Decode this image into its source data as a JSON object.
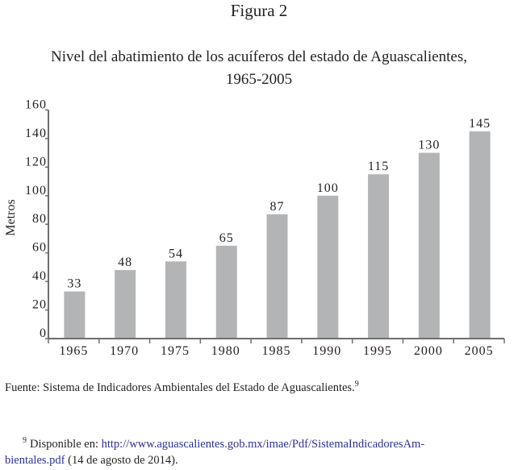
{
  "figure_label": "Figura 2",
  "title_line1": "Nivel del abatimiento de los acuíferos del estado de Aguascalientes,",
  "title_line2": "1965-2005",
  "source": {
    "text": "Fuente: Sistema de Indicadores Ambientales del Estado de Aguascalientes.",
    "footnote_ref": "9"
  },
  "footnote": {
    "number": "9",
    "prefix": "Disponible  en: ",
    "link_part1": "http://www.aguascalientes.gob.mx/imae/Pdf/SistemaIndicadoresAm-",
    "link_part2": "bientales.pdf",
    "suffix": " (14 de agosto de 2014)."
  },
  "colors": {
    "bar": "#b3b4b6",
    "axis": "#6d6e70",
    "link": "#2e3192"
  },
  "chart_data": {
    "type": "bar",
    "title": "Nivel del abatimiento de los acuíferos del estado de Aguascalientes, 1965-2005",
    "xlabel": "",
    "ylabel": "Metros",
    "categories": [
      "1965",
      "1970",
      "1975",
      "1980",
      "1985",
      "1990",
      "1995",
      "2000",
      "2005"
    ],
    "values": [
      33,
      48,
      54,
      65,
      87,
      100,
      115,
      130,
      145
    ],
    "ylim": [
      0,
      160
    ],
    "yticks": [
      0,
      20,
      40,
      60,
      80,
      100,
      120,
      140,
      160
    ],
    "grid": false,
    "data_labels": true
  }
}
